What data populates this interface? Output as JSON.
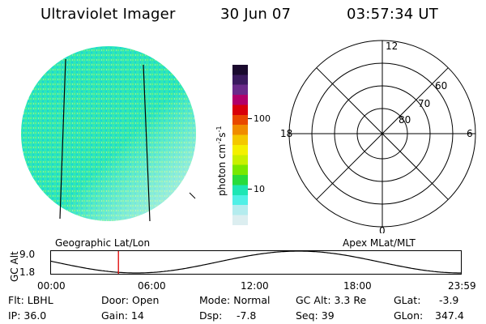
{
  "header": {
    "title": "Ultraviolet Imager",
    "date": "30 Jun 07",
    "time": "03:57:34 UT"
  },
  "colorbar": {
    "unit_label": "photon cm",
    "unit_exp1": "-2",
    "unit_s": "s",
    "unit_exp2": "-1",
    "tick_100": "100",
    "tick_10": "10",
    "colors": [
      "#1a0a2e",
      "#3a1a5e",
      "#6a2a8a",
      "#b0006a",
      "#d8000a",
      "#e84800",
      "#f08c00",
      "#f4c800",
      "#f4f000",
      "#c8f000",
      "#78e800",
      "#28dc3c",
      "#1ee6b4",
      "#50f0e6",
      "#b4ecee",
      "#dceef0"
    ]
  },
  "polar": {
    "mlt_labels": {
      "top": "12",
      "left": "18",
      "right": "6",
      "bottom": "0"
    },
    "lat_labels": [
      "60",
      "70",
      "80"
    ]
  },
  "labels": {
    "left": "Geographic Lat/Lon",
    "right": "Apex MLat/MLT"
  },
  "altplot": {
    "ylabel": "GC Alt",
    "ymax": "9.0",
    "ymin": "1.8",
    "xticks": [
      "00:00",
      "06:00",
      "12:00",
      "18:00",
      "23:59"
    ],
    "current_time_hours": 3.96
  },
  "info": {
    "row1": {
      "filter": "Flt: LBHL",
      "door": "Door: Open",
      "mode": "Mode: Normal",
      "gc_alt": "GC Alt: 3.3 Re",
      "glat_label": "GLat:",
      "glat_value": "-3.9"
    },
    "row2": {
      "ip": "IP: 36.0",
      "gain": "Gain: 14",
      "dsp_label": "Dsp:",
      "dsp_value": "-7.8",
      "seq": "Seq: 39",
      "glon_label": "GLon:",
      "glon_value": "347.4"
    }
  }
}
